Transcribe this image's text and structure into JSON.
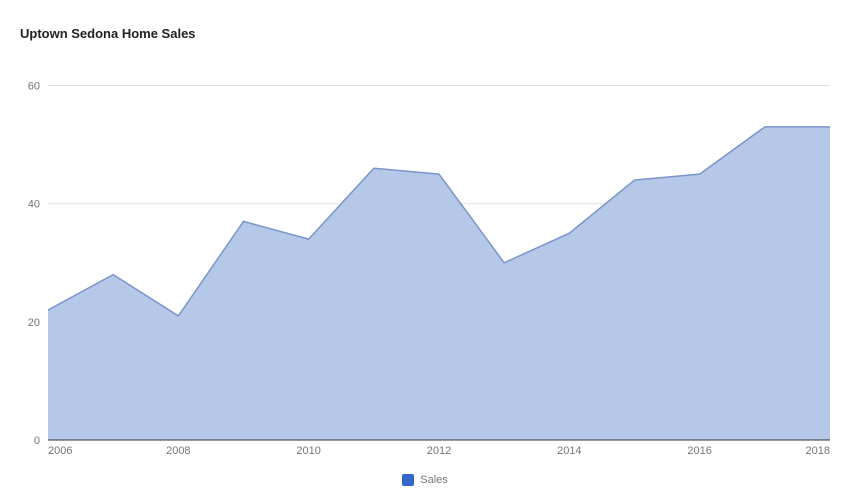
{
  "chart": {
    "type": "area",
    "title": "Uptown Sedona Home Sales",
    "title_fontsize": 13,
    "title_color": "#222222",
    "background_color": "#ffffff",
    "series": {
      "name": "Sales",
      "x": [
        2006,
        2007,
        2008,
        2009,
        2010,
        2011,
        2012,
        2013,
        2014,
        2015,
        2016,
        2017,
        2018
      ],
      "y": [
        22,
        28,
        21,
        37,
        34,
        46,
        45,
        30,
        35,
        44,
        45,
        53,
        53
      ],
      "fill_color": "#b6c8e8",
      "stroke_color": "#7a95c9",
      "fill_opacity": 1,
      "line_width": 1.5
    },
    "x_axis": {
      "min": 2006,
      "max": 2018,
      "ticks": [
        2006,
        2008,
        2010,
        2012,
        2014,
        2016,
        2018
      ],
      "label_fontsize": 11,
      "label_color": "#757575"
    },
    "y_axis": {
      "min": 0,
      "max": 65,
      "ticks": [
        0,
        20,
        40,
        60
      ],
      "label_fontsize": 11,
      "label_color": "#757575"
    },
    "grid_color": "#e0e0e0",
    "baseline_color": "#333333",
    "legend": {
      "swatch_color": "#3366cc",
      "label": "Sales",
      "label_color": "#757575",
      "label_fontsize": 11
    }
  }
}
